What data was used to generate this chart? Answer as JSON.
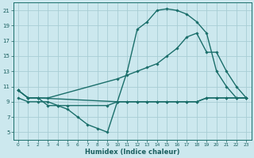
{
  "xlabel": "Humidex (Indice chaleur)",
  "bg_color": "#cce8ee",
  "grid_color": "#a8cdd4",
  "line_color": "#1a6e6a",
  "xlim": [
    -0.5,
    23.5
  ],
  "ylim": [
    4,
    22
  ],
  "yticks": [
    5,
    7,
    9,
    11,
    13,
    15,
    17,
    19,
    21
  ],
  "xticks": [
    0,
    1,
    2,
    3,
    4,
    5,
    6,
    7,
    8,
    9,
    10,
    11,
    12,
    13,
    14,
    15,
    16,
    17,
    18,
    19,
    20,
    21,
    22,
    23
  ],
  "series": [
    {
      "x": [
        0,
        1,
        2,
        10,
        11,
        12,
        13,
        14,
        15,
        16,
        17,
        18,
        19,
        20,
        21,
        22,
        23
      ],
      "y": [
        10.5,
        9.5,
        9.5,
        9.0,
        13.0,
        18.5,
        19.5,
        21.0,
        21.2,
        21.0,
        20.5,
        19.5,
        18.0,
        13.0,
        11.0,
        9.5,
        9.5
      ],
      "marker": "D",
      "markersize": 1.8,
      "linewidth": 1.0
    },
    {
      "x": [
        0,
        1,
        2,
        3,
        10,
        11,
        12,
        13,
        14,
        15,
        16,
        17,
        18,
        19,
        20,
        21,
        22,
        23
      ],
      "y": [
        10.5,
        9.5,
        9.5,
        9.5,
        12.0,
        12.5,
        13.0,
        13.5,
        14.0,
        15.0,
        16.0,
        17.5,
        18.0,
        15.5,
        15.5,
        13.0,
        11.0,
        9.5
      ],
      "marker": "D",
      "markersize": 1.8,
      "linewidth": 1.0
    },
    {
      "x": [
        0,
        1,
        2,
        3,
        4,
        5,
        9,
        10,
        11,
        12,
        13,
        14,
        15,
        16,
        17,
        18,
        19,
        20,
        21,
        22,
        23
      ],
      "y": [
        9.5,
        9.0,
        9.0,
        9.0,
        8.5,
        8.5,
        8.5,
        9.0,
        9.0,
        9.0,
        9.0,
        9.0,
        9.0,
        9.0,
        9.0,
        9.0,
        9.5,
        9.5,
        9.5,
        9.5,
        9.5
      ],
      "marker": "D",
      "markersize": 1.8,
      "linewidth": 1.0
    },
    {
      "x": [
        0,
        1,
        2,
        3,
        4,
        5,
        6,
        7,
        8,
        9,
        10,
        11,
        12,
        13,
        14,
        15,
        16,
        17,
        18,
        19,
        20,
        21,
        22,
        23
      ],
      "y": [
        10.5,
        9.5,
        9.5,
        8.5,
        8.5,
        8.0,
        7.0,
        6.0,
        5.5,
        5.0,
        9.0,
        9.0,
        9.0,
        9.0,
        9.0,
        9.0,
        9.0,
        9.0,
        9.0,
        9.5,
        9.5,
        9.5,
        9.5,
        9.5
      ],
      "marker": "D",
      "markersize": 1.8,
      "linewidth": 1.0
    }
  ]
}
